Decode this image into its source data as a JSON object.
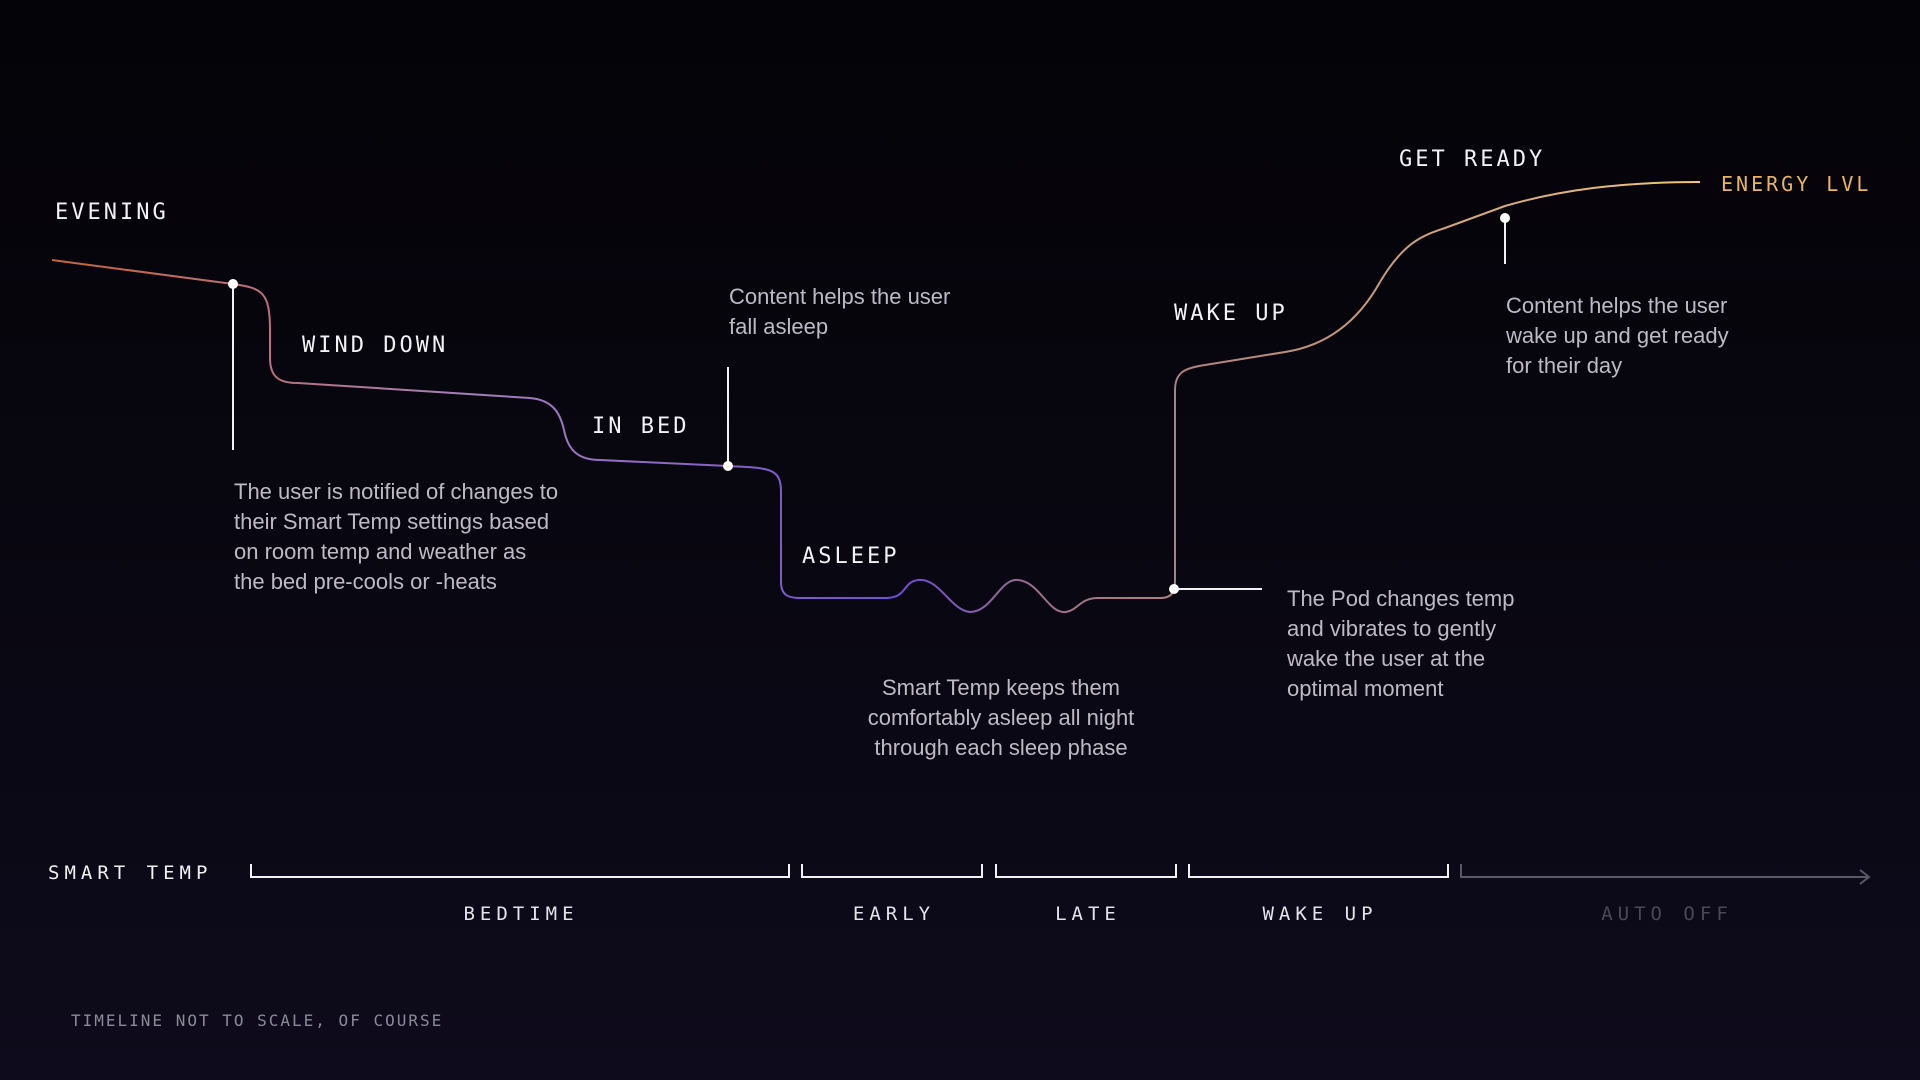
{
  "colors": {
    "background": "#08060f",
    "curve_start": "#c9623a",
    "curve_mid": "#6d4fd1",
    "curve_wake": "#9c6f86",
    "curve_end": "#f0c677",
    "text": "#f2f1f5",
    "description": "#bdbac6",
    "muted": "#4a4759"
  },
  "curve": {
    "end_label": "ENERGY LVL"
  },
  "stages": {
    "evening": "EVENING",
    "wind_down": "WIND DOWN",
    "in_bed": "IN BED",
    "asleep": "ASLEEP",
    "wake_up": "WAKE UP",
    "get_ready": "GET READY"
  },
  "descriptions": {
    "wind_down": "The user is notified of changes to\ntheir Smart Temp settings based\non room temp and weather as\nthe bed pre-cools or -heats",
    "in_bed": "Content helps the user\nfall asleep",
    "asleep": "Smart Temp keeps them\ncomfortably asleep all night\nthrough each sleep phase",
    "wake_up": "The Pod changes temp\nand vibrates to gently\nwake the user at the\noptimal moment",
    "get_ready": "Content helps the user\nwake up and get ready\nfor their day"
  },
  "timeline": {
    "title": "SMART TEMP",
    "segments": [
      {
        "label": "BEDTIME",
        "muted": false
      },
      {
        "label": "EARLY",
        "muted": false
      },
      {
        "label": "LATE",
        "muted": false
      },
      {
        "label": "WAKE UP",
        "muted": false
      },
      {
        "label": "AUTO OFF",
        "muted": true
      }
    ]
  },
  "footnote": "TIMELINE NOT TO SCALE, OF COURSE"
}
